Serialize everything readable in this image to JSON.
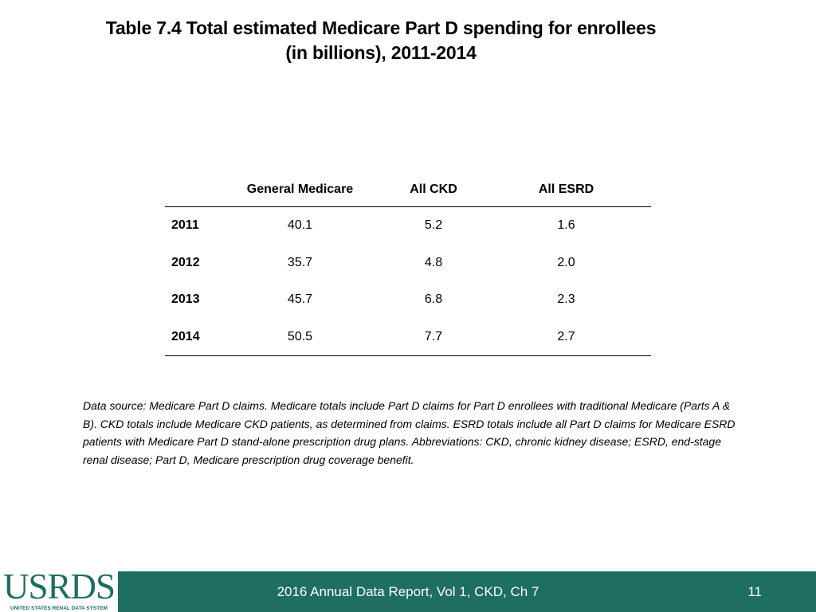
{
  "title": {
    "line1": "Table 7.4 Total estimated Medicare Part D spending for enrollees",
    "line2": "(in billions), 2011-2014"
  },
  "table": {
    "headers": [
      "",
      "General Medicare",
      "All CKD",
      "All ESRD"
    ],
    "rows": [
      {
        "year": "2011",
        "general_medicare": "40.1",
        "all_ckd": "5.2",
        "all_esrd": "1.6"
      },
      {
        "year": "2012",
        "general_medicare": "35.7",
        "all_ckd": "4.8",
        "all_esrd": "2.0"
      },
      {
        "year": "2013",
        "general_medicare": "45.7",
        "all_ckd": "6.8",
        "all_esrd": "2.3"
      },
      {
        "year": "2014",
        "general_medicare": "50.5",
        "all_ckd": "7.7",
        "all_esrd": "2.7"
      }
    ]
  },
  "footnote": "Data source: Medicare Part D claims. Medicare totals include Part D claims for Part D enrollees with traditional Medicare (Parts A & B). CKD totals include Medicare CKD patients, as determined from claims. ESRD totals include all Part D claims for Medicare ESRD patients with Medicare Part D stand-alone prescription drug plans. Abbreviations: CKD, chronic kidney disease; ESRD, end-stage renal disease; Part D, Medicare prescription drug coverage benefit.",
  "footer": {
    "text": "2016 Annual Data Report, Vol 1, CKD, Ch 7",
    "page_number": "11"
  },
  "logo": {
    "word": "USRDS",
    "subtitle": "UNITED STATES RENAL DATA SYSTEM"
  },
  "colors": {
    "accent": "#1e6e62",
    "text": "#000000",
    "background": "#ffffff"
  }
}
